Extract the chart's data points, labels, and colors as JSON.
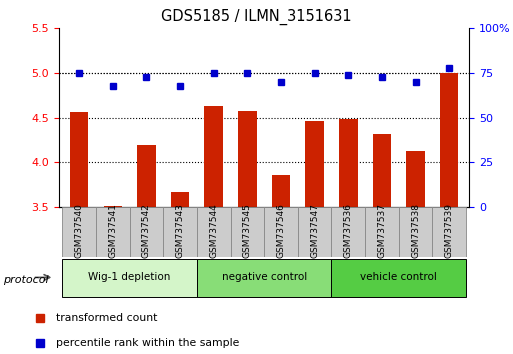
{
  "title": "GDS5185 / ILMN_3151631",
  "samples": [
    "GSM737540",
    "GSM737541",
    "GSM737542",
    "GSM737543",
    "GSM737544",
    "GSM737545",
    "GSM737546",
    "GSM737547",
    "GSM737536",
    "GSM737537",
    "GSM737538",
    "GSM737539"
  ],
  "red_values": [
    4.56,
    3.51,
    4.2,
    3.67,
    4.63,
    4.57,
    3.86,
    4.46,
    4.49,
    4.32,
    4.13,
    5.0
  ],
  "blue_values": [
    75,
    68,
    73,
    68,
    75,
    75,
    70,
    75,
    74,
    73,
    70,
    78
  ],
  "ylim_left": [
    3.5,
    5.5
  ],
  "ylim_right": [
    0,
    100
  ],
  "yticks_left": [
    3.5,
    4.0,
    4.5,
    5.0,
    5.5
  ],
  "yticks_right": [
    0,
    25,
    50,
    75,
    100
  ],
  "groups": [
    {
      "label": "Wig-1 depletion",
      "indices": [
        0,
        1,
        2,
        3
      ],
      "color": "#d4f5c9"
    },
    {
      "label": "negative control",
      "indices": [
        4,
        5,
        6,
        7
      ],
      "color": "#88dd77"
    },
    {
      "label": "vehicle control",
      "indices": [
        8,
        9,
        10,
        11
      ],
      "color": "#55cc44"
    }
  ],
  "bar_color": "#cc2200",
  "dot_color": "#0000cc",
  "protocol_label": "protocol",
  "legend_red": "transformed count",
  "legend_blue": "percentile rank within the sample",
  "grid_color": "black",
  "label_box_color": "#cccccc",
  "label_box_edge": "#888888"
}
